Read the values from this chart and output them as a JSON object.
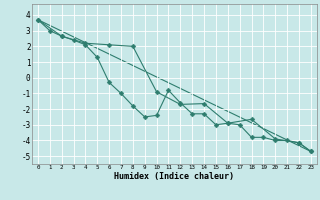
{
  "title": "",
  "xlabel": "Humidex (Indice chaleur)",
  "bg_color": "#c8e8e8",
  "grid_color": "#ffffff",
  "line_color": "#2e7d6e",
  "xlim": [
    -0.5,
    23.5
  ],
  "ylim": [
    -5.5,
    4.7
  ],
  "yticks": [
    -5,
    -4,
    -3,
    -2,
    -1,
    0,
    1,
    2,
    3,
    4
  ],
  "xticks": [
    0,
    1,
    2,
    3,
    4,
    5,
    6,
    7,
    8,
    9,
    10,
    11,
    12,
    13,
    14,
    15,
    16,
    17,
    18,
    19,
    20,
    21,
    22,
    23
  ],
  "series1_x": [
    0,
    1,
    2,
    3,
    4,
    5,
    6,
    7,
    8,
    9,
    10,
    11,
    12,
    13,
    14,
    15,
    16,
    17,
    18,
    19,
    20,
    21,
    22,
    23
  ],
  "series1_y": [
    3.7,
    3.0,
    2.65,
    2.4,
    2.1,
    1.3,
    -0.3,
    -1.0,
    -1.8,
    -2.5,
    -2.4,
    -0.8,
    -1.6,
    -2.3,
    -2.3,
    -3.0,
    -2.9,
    -3.0,
    -3.8,
    -3.8,
    -4.0,
    -4.0,
    -4.15,
    -4.7
  ],
  "series2_x": [
    0,
    2,
    4,
    6,
    8,
    10,
    12,
    14,
    16,
    18,
    20,
    22,
    23
  ],
  "series2_y": [
    3.7,
    2.65,
    2.2,
    2.1,
    2.0,
    -0.9,
    -1.7,
    -1.65,
    -2.9,
    -2.65,
    -3.9,
    -4.15,
    -4.7
  ],
  "series3_x": [
    0,
    23
  ],
  "series3_y": [
    3.7,
    -4.7
  ],
  "markersize": 2.5
}
